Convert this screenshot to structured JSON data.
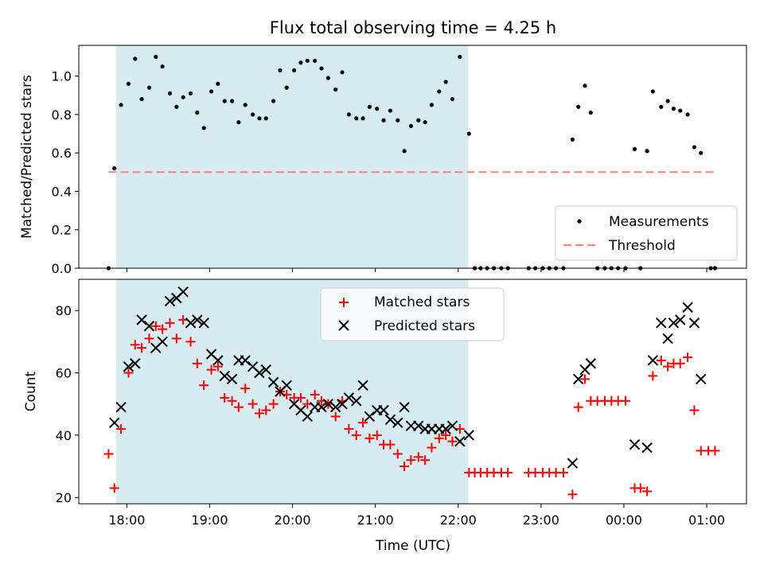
{
  "title": "Flux total observing time = 4.25 h",
  "colors": {
    "shade": "#add8e6",
    "threshold": "#ff7f7f",
    "matched": "#ff0000",
    "predicted": "#000000",
    "measurement": "#000000"
  },
  "x_ticks": [
    {
      "t": 18,
      "label": "18:00"
    },
    {
      "t": 19,
      "label": "19:00"
    },
    {
      "t": 20,
      "label": "20:00"
    },
    {
      "t": 21,
      "label": "21:00"
    },
    {
      "t": 22,
      "label": "22:00"
    },
    {
      "t": 23,
      "label": "23:00"
    },
    {
      "t": 24,
      "label": "00:00"
    },
    {
      "t": 25,
      "label": "01:00"
    }
  ],
  "chart_data": [
    {
      "type": "scatter",
      "ylabel": "Matched/Predicted stars",
      "xlim": [
        17.42,
        25.48
      ],
      "ylim": [
        0,
        1.16
      ],
      "y_ticks": [
        {
          "v": 0,
          "label": "0.0"
        },
        {
          "v": 0.2,
          "label": "0.2"
        },
        {
          "v": 0.4,
          "label": "0.4"
        },
        {
          "v": 0.6,
          "label": "0.6"
        },
        {
          "v": 0.8,
          "label": "0.8"
        },
        {
          "v": 1.0,
          "label": "1.0"
        }
      ],
      "shaded_span": [
        17.87,
        22.12
      ],
      "legend": {
        "placement": "lower-right",
        "entries": [
          "Measurements",
          "Threshold"
        ]
      },
      "threshold": {
        "name": "Threshold",
        "x": [
          17.78,
          25.08
        ],
        "y": 0.5
      },
      "series": [
        {
          "name": "Measurements",
          "points": [
            [
              17.78,
              0.0
            ],
            [
              17.85,
              0.52
            ],
            [
              17.93,
              0.85
            ],
            [
              18.02,
              0.96
            ],
            [
              18.1,
              1.09
            ],
            [
              18.18,
              0.88
            ],
            [
              18.27,
              0.94
            ],
            [
              18.35,
              1.1
            ],
            [
              18.43,
              1.05
            ],
            [
              18.52,
              0.91
            ],
            [
              18.6,
              0.84
            ],
            [
              18.68,
              0.89
            ],
            [
              18.77,
              0.91
            ],
            [
              18.85,
              0.81
            ],
            [
              18.93,
              0.73
            ],
            [
              19.02,
              0.92
            ],
            [
              19.1,
              0.96
            ],
            [
              19.18,
              0.87
            ],
            [
              19.27,
              0.87
            ],
            [
              19.35,
              0.76
            ],
            [
              19.43,
              0.85
            ],
            [
              19.52,
              0.8
            ],
            [
              19.6,
              0.78
            ],
            [
              19.68,
              0.78
            ],
            [
              19.77,
              0.87
            ],
            [
              19.85,
              1.03
            ],
            [
              19.93,
              0.94
            ],
            [
              20.02,
              1.03
            ],
            [
              20.1,
              1.07
            ],
            [
              20.18,
              1.08
            ],
            [
              20.27,
              1.08
            ],
            [
              20.35,
              1.04
            ],
            [
              20.43,
              0.99
            ],
            [
              20.52,
              0.93
            ],
            [
              20.6,
              1.02
            ],
            [
              20.68,
              0.8
            ],
            [
              20.77,
              0.78
            ],
            [
              20.85,
              0.78
            ],
            [
              20.93,
              0.84
            ],
            [
              21.02,
              0.83
            ],
            [
              21.1,
              0.77
            ],
            [
              21.18,
              0.82
            ],
            [
              21.27,
              0.77
            ],
            [
              21.35,
              0.61
            ],
            [
              21.43,
              0.74
            ],
            [
              21.52,
              0.77
            ],
            [
              21.6,
              0.76
            ],
            [
              21.68,
              0.85
            ],
            [
              21.77,
              0.92
            ],
            [
              21.85,
              0.97
            ],
            [
              21.93,
              0.88
            ],
            [
              22.02,
              1.1
            ],
            [
              22.13,
              0.7
            ],
            [
              22.2,
              0.0
            ],
            [
              22.27,
              0.0
            ],
            [
              22.35,
              0.0
            ],
            [
              22.43,
              0.0
            ],
            [
              22.52,
              0.0
            ],
            [
              22.6,
              0.0
            ],
            [
              22.85,
              0.0
            ],
            [
              22.93,
              0.0
            ],
            [
              23.02,
              0.0
            ],
            [
              23.1,
              0.0
            ],
            [
              23.18,
              0.0
            ],
            [
              23.27,
              0.0
            ],
            [
              23.38,
              0.67
            ],
            [
              23.45,
              0.84
            ],
            [
              23.53,
              0.95
            ],
            [
              23.6,
              0.81
            ],
            [
              23.68,
              0.0
            ],
            [
              23.77,
              0.0
            ],
            [
              23.85,
              0.0
            ],
            [
              23.93,
              0.0
            ],
            [
              24.02,
              0.0
            ],
            [
              24.13,
              0.62
            ],
            [
              24.2,
              0.0
            ],
            [
              24.28,
              0.61
            ],
            [
              24.35,
              0.92
            ],
            [
              24.45,
              0.84
            ],
            [
              24.53,
              0.87
            ],
            [
              24.6,
              0.83
            ],
            [
              24.68,
              0.82
            ],
            [
              24.77,
              0.8
            ],
            [
              24.85,
              0.63
            ],
            [
              24.93,
              0.6
            ],
            [
              25.05,
              0.0
            ],
            [
              25.1,
              0.0
            ]
          ]
        }
      ]
    },
    {
      "type": "scatter",
      "ylabel": "Count",
      "xlabel": "Time (UTC)",
      "xlim": [
        17.42,
        25.48
      ],
      "ylim": [
        18,
        90
      ],
      "y_ticks": [
        {
          "v": 20,
          "label": "20"
        },
        {
          "v": 40,
          "label": "40"
        },
        {
          "v": 60,
          "label": "60"
        },
        {
          "v": 80,
          "label": "80"
        }
      ],
      "shaded_span": [
        17.87,
        22.12
      ],
      "legend": {
        "placement": "upper-center",
        "entries": [
          "Matched stars",
          "Predicted stars"
        ]
      },
      "series": [
        {
          "name": "Matched stars",
          "marker": "plus",
          "points": [
            [
              17.78,
              34
            ],
            [
              17.85,
              23
            ],
            [
              17.93,
              42
            ],
            [
              18.02,
              60
            ],
            [
              18.1,
              69
            ],
            [
              18.18,
              68
            ],
            [
              18.27,
              71
            ],
            [
              18.35,
              75
            ],
            [
              18.43,
              74
            ],
            [
              18.52,
              76
            ],
            [
              18.6,
              71
            ],
            [
              18.68,
              77
            ],
            [
              18.77,
              70
            ],
            [
              18.85,
              63
            ],
            [
              18.93,
              56
            ],
            [
              19.02,
              61
            ],
            [
              19.1,
              62
            ],
            [
              19.18,
              52
            ],
            [
              19.27,
              51
            ],
            [
              19.35,
              49
            ],
            [
              19.43,
              55
            ],
            [
              19.52,
              50
            ],
            [
              19.6,
              47
            ],
            [
              19.68,
              48
            ],
            [
              19.77,
              50
            ],
            [
              19.85,
              54
            ],
            [
              19.93,
              53
            ],
            [
              20.02,
              52
            ],
            [
              20.1,
              52
            ],
            [
              20.18,
              50
            ],
            [
              20.27,
              53
            ],
            [
              20.35,
              51
            ],
            [
              20.43,
              50
            ],
            [
              20.52,
              46
            ],
            [
              20.6,
              51
            ],
            [
              20.68,
              42
            ],
            [
              20.77,
              40
            ],
            [
              20.85,
              44
            ],
            [
              20.93,
              39
            ],
            [
              21.02,
              40
            ],
            [
              21.1,
              37
            ],
            [
              21.18,
              37
            ],
            [
              21.27,
              34
            ],
            [
              21.35,
              30
            ],
            [
              21.43,
              32
            ],
            [
              21.52,
              33
            ],
            [
              21.6,
              32
            ],
            [
              21.68,
              36
            ],
            [
              21.77,
              39
            ],
            [
              21.85,
              40
            ],
            [
              21.93,
              38
            ],
            [
              22.02,
              42
            ],
            [
              22.13,
              28
            ],
            [
              22.2,
              28
            ],
            [
              22.27,
              28
            ],
            [
              22.35,
              28
            ],
            [
              22.43,
              28
            ],
            [
              22.52,
              28
            ],
            [
              22.6,
              28
            ],
            [
              22.85,
              28
            ],
            [
              22.93,
              28
            ],
            [
              23.02,
              28
            ],
            [
              23.1,
              28
            ],
            [
              23.18,
              28
            ],
            [
              23.27,
              28
            ],
            [
              23.38,
              21
            ],
            [
              23.45,
              49
            ],
            [
              23.53,
              58
            ],
            [
              23.6,
              51
            ],
            [
              23.68,
              51
            ],
            [
              23.77,
              51
            ],
            [
              23.85,
              51
            ],
            [
              23.93,
              51
            ],
            [
              24.02,
              51
            ],
            [
              24.13,
              23
            ],
            [
              24.2,
              23
            ],
            [
              24.28,
              22
            ],
            [
              24.35,
              59
            ],
            [
              24.45,
              64
            ],
            [
              24.53,
              62
            ],
            [
              24.6,
              63
            ],
            [
              24.68,
              63
            ],
            [
              24.77,
              65
            ],
            [
              24.85,
              48
            ],
            [
              24.93,
              35
            ],
            [
              25.02,
              35
            ],
            [
              25.1,
              35
            ]
          ]
        },
        {
          "name": "Predicted stars",
          "marker": "x",
          "points": [
            [
              17.85,
              44
            ],
            [
              17.93,
              49
            ],
            [
              18.02,
              62
            ],
            [
              18.1,
              63
            ],
            [
              18.18,
              77
            ],
            [
              18.27,
              75
            ],
            [
              18.35,
              68
            ],
            [
              18.43,
              70
            ],
            [
              18.52,
              83
            ],
            [
              18.6,
              84
            ],
            [
              18.68,
              86
            ],
            [
              18.77,
              76
            ],
            [
              18.85,
              77
            ],
            [
              18.93,
              76
            ],
            [
              19.02,
              66
            ],
            [
              19.1,
              64
            ],
            [
              19.18,
              59
            ],
            [
              19.27,
              58
            ],
            [
              19.35,
              64
            ],
            [
              19.43,
              64
            ],
            [
              19.52,
              62
            ],
            [
              19.6,
              60
            ],
            [
              19.68,
              61
            ],
            [
              19.77,
              57
            ],
            [
              19.85,
              54
            ],
            [
              19.93,
              56
            ],
            [
              20.02,
              50
            ],
            [
              20.1,
              48
            ],
            [
              20.18,
              46
            ],
            [
              20.27,
              49
            ],
            [
              20.35,
              49
            ],
            [
              20.43,
              50
            ],
            [
              20.52,
              49
            ],
            [
              20.6,
              50
            ],
            [
              20.68,
              52
            ],
            [
              20.77,
              51
            ],
            [
              20.85,
              56
            ],
            [
              20.93,
              46
            ],
            [
              21.02,
              48
            ],
            [
              21.1,
              48
            ],
            [
              21.18,
              45
            ],
            [
              21.27,
              44
            ],
            [
              21.35,
              49
            ],
            [
              21.43,
              43
            ],
            [
              21.52,
              43
            ],
            [
              21.6,
              42
            ],
            [
              21.68,
              42
            ],
            [
              21.77,
              42
            ],
            [
              21.85,
              42
            ],
            [
              21.93,
              43
            ],
            [
              22.02,
              38
            ],
            [
              22.13,
              40
            ],
            [
              23.38,
              31
            ],
            [
              23.45,
              58
            ],
            [
              23.53,
              61
            ],
            [
              23.6,
              63
            ],
            [
              24.13,
              37
            ],
            [
              24.28,
              36
            ],
            [
              24.35,
              64
            ],
            [
              24.45,
              76
            ],
            [
              24.53,
              71
            ],
            [
              24.6,
              76
            ],
            [
              24.68,
              77
            ],
            [
              24.77,
              81
            ],
            [
              24.85,
              76
            ],
            [
              24.93,
              58
            ]
          ]
        }
      ]
    }
  ]
}
